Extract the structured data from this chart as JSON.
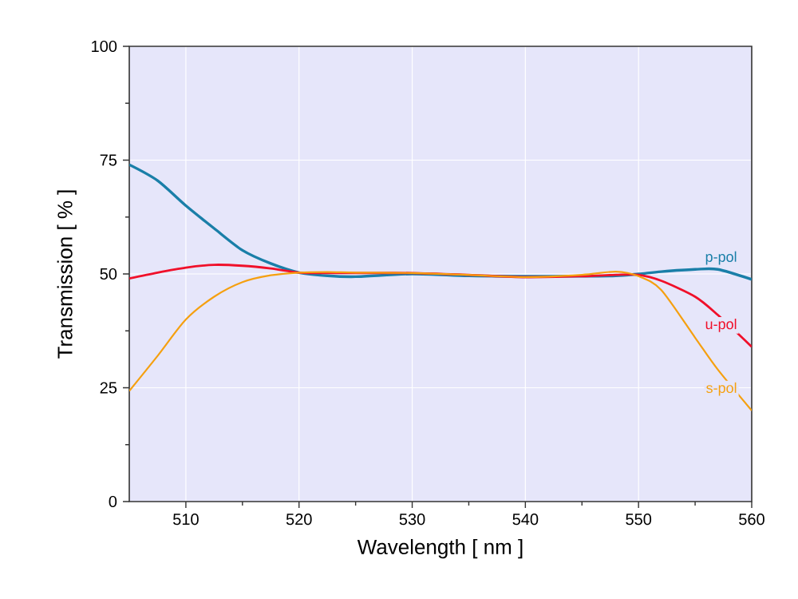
{
  "chart_data": {
    "type": "line",
    "xlabel": "Wavelength [ nm ]",
    "ylabel": "Transmission [ % ]",
    "xlim": [
      505,
      560
    ],
    "ylim": [
      0,
      100
    ],
    "xticks": [
      510,
      520,
      530,
      540,
      550,
      560
    ],
    "yticks": [
      0,
      25,
      50,
      75,
      100
    ],
    "grid": true,
    "legend": false,
    "marker": "none",
    "line_style": "solid",
    "x": [
      505,
      507.5,
      510,
      512.5,
      515,
      517.5,
      520,
      522.5,
      525,
      530,
      535,
      540,
      545,
      548,
      550,
      552,
      555,
      557,
      560
    ],
    "series": [
      {
        "name": "p-pol",
        "color": "#1a7fa8",
        "values": [
          74,
          70.5,
          65,
          60,
          55.2,
          52.3,
          50.3,
          49.6,
          49.4,
          50,
          49.6,
          49.5,
          49.5,
          49.6,
          50,
          50.5,
          51,
          51,
          48.8
        ]
      },
      {
        "name": "u-pol",
        "color": "#f0102a",
        "values": [
          49,
          50.3,
          51.4,
          52,
          51.8,
          51.2,
          50.3,
          50.2,
          50.2,
          50.2,
          49.8,
          49.3,
          49.5,
          49.8,
          49.8,
          48.5,
          45,
          41,
          34
        ]
      },
      {
        "name": "s-pol",
        "color": "#f5a010",
        "values": [
          24.3,
          32,
          40,
          45,
          48.2,
          49.7,
          50.3,
          50.4,
          50.3,
          50.2,
          49.8,
          49.3,
          49.8,
          50.5,
          49.5,
          46.5,
          36,
          29,
          20
        ]
      }
    ]
  }
}
